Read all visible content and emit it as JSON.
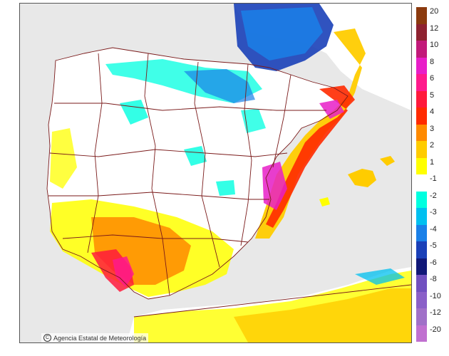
{
  "credit": {
    "copyright_symbol": "C",
    "text": "Agencia Estatal de Meteorología"
  },
  "legend": {
    "labels": [
      "20",
      "12",
      "10",
      "8",
      "6",
      "5",
      "4",
      "3",
      "2",
      "1",
      "-1",
      "-2",
      "-3",
      "-4",
      "-5",
      "-6",
      "-8",
      "-10",
      "-12",
      "-20"
    ],
    "colors": [
      "#8b3a0e",
      "#8e2230",
      "#c21a7a",
      "#e81ec8",
      "#ff1a8c",
      "#ff1a3c",
      "#ff2a00",
      "#ff8a00",
      "#ffcc00",
      "#ffff00",
      "#ffffff",
      "#00ffe0",
      "#00c0f0",
      "#1a80e8",
      "#1a40b8",
      "#101878",
      "#7050c0",
      "#8a60c8",
      "#a070c8",
      "#c070d0"
    ]
  },
  "map": {
    "sea_color": "#e8e8e8",
    "land_color": "#ffffff",
    "boundary_color": "#7a1a1a"
  }
}
